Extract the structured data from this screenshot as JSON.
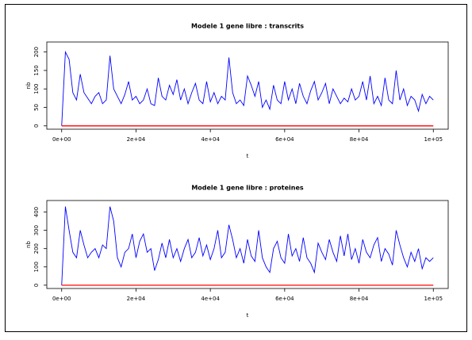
{
  "chart_data": [
    {
      "type": "line",
      "title": "Modele 1 gene libre : transcrits",
      "x_label": "t",
      "y_label": "nb",
      "xlim": [
        -4000,
        104000
      ],
      "ylim": [
        -9,
        227
      ],
      "xticks": [
        {
          "value": 0,
          "label": "0e+00"
        },
        {
          "value": 20000,
          "label": "2e+04"
        },
        {
          "value": 40000,
          "label": "4e+04"
        },
        {
          "value": 60000,
          "label": "6e+04"
        },
        {
          "value": 80000,
          "label": "8e+04"
        },
        {
          "value": 100000,
          "label": "1e+05"
        }
      ],
      "yticks": [
        0,
        50,
        100,
        150,
        200
      ],
      "series": [
        {
          "color": "#0000ff",
          "x": [
            0,
            1000,
            2000,
            3000,
            4000,
            5000,
            6000,
            7000,
            8000,
            9000,
            10000,
            11000,
            12000,
            13000,
            14000,
            15000,
            16000,
            17000,
            18000,
            19000,
            20000,
            21000,
            22000,
            23000,
            24000,
            25000,
            26000,
            27000,
            28000,
            29000,
            30000,
            31000,
            32000,
            33000,
            34000,
            35000,
            36000,
            37000,
            38000,
            39000,
            40000,
            41000,
            42000,
            43000,
            44000,
            45000,
            46000,
            47000,
            48000,
            49000,
            50000,
            51000,
            52000,
            53000,
            54000,
            55000,
            56000,
            57000,
            58000,
            59000,
            60000,
            61000,
            62000,
            63000,
            64000,
            65000,
            66000,
            67000,
            68000,
            69000,
            70000,
            71000,
            72000,
            73000,
            74000,
            75000,
            76000,
            77000,
            78000,
            79000,
            80000,
            81000,
            82000,
            83000,
            84000,
            85000,
            86000,
            87000,
            88000,
            89000,
            90000,
            91000,
            92000,
            93000,
            94000,
            95000,
            96000,
            97000,
            98000,
            99000,
            100000
          ],
          "values": [
            0,
            200,
            180,
            90,
            70,
            140,
            90,
            75,
            60,
            80,
            90,
            60,
            70,
            190,
            100,
            80,
            60,
            85,
            120,
            70,
            80,
            60,
            70,
            100,
            60,
            55,
            130,
            80,
            70,
            110,
            85,
            125,
            70,
            100,
            60,
            90,
            115,
            70,
            60,
            120,
            65,
            90,
            60,
            80,
            70,
            185,
            90,
            60,
            70,
            55,
            135,
            110,
            80,
            120,
            50,
            70,
            45,
            110,
            70,
            60,
            120,
            70,
            100,
            60,
            115,
            80,
            60,
            95,
            120,
            70,
            90,
            115,
            60,
            100,
            80,
            60,
            75,
            65,
            100,
            70,
            80,
            120,
            70,
            135,
            60,
            80,
            55,
            130,
            70,
            60,
            150,
            70,
            100,
            55,
            80,
            70,
            40,
            85,
            60,
            80,
            70
          ]
        },
        {
          "color": "#ff0000",
          "x": [
            0,
            100000
          ],
          "values": [
            0,
            0
          ]
        }
      ]
    },
    {
      "type": "line",
      "title": "Modele 1 gene libre : proteines",
      "x_label": "t",
      "y_label": "nb",
      "xlim": [
        -4000,
        104000
      ],
      "ylim": [
        -18,
        463
      ],
      "xticks": [
        {
          "value": 0,
          "label": "0e+00"
        },
        {
          "value": 20000,
          "label": "2e+04"
        },
        {
          "value": 40000,
          "label": "4e+04"
        },
        {
          "value": 60000,
          "label": "6e+04"
        },
        {
          "value": 80000,
          "label": "8e+04"
        },
        {
          "value": 100000,
          "label": "1e+05"
        }
      ],
      "yticks": [
        0,
        100,
        200,
        300,
        400
      ],
      "series": [
        {
          "color": "#0000ff",
          "x": [
            0,
            1000,
            2000,
            3000,
            4000,
            5000,
            6000,
            7000,
            8000,
            9000,
            10000,
            11000,
            12000,
            13000,
            14000,
            15000,
            16000,
            17000,
            18000,
            19000,
            20000,
            21000,
            22000,
            23000,
            24000,
            25000,
            26000,
            27000,
            28000,
            29000,
            30000,
            31000,
            32000,
            33000,
            34000,
            35000,
            36000,
            37000,
            38000,
            39000,
            40000,
            41000,
            42000,
            43000,
            44000,
            45000,
            46000,
            47000,
            48000,
            49000,
            50000,
            51000,
            52000,
            53000,
            54000,
            55000,
            56000,
            57000,
            58000,
            59000,
            60000,
            61000,
            62000,
            63000,
            64000,
            65000,
            66000,
            67000,
            68000,
            69000,
            70000,
            71000,
            72000,
            73000,
            74000,
            75000,
            76000,
            77000,
            78000,
            79000,
            80000,
            81000,
            82000,
            83000,
            84000,
            85000,
            86000,
            87000,
            88000,
            89000,
            90000,
            91000,
            92000,
            93000,
            94000,
            95000,
            96000,
            97000,
            98000,
            99000,
            100000
          ],
          "values": [
            0,
            430,
            300,
            180,
            150,
            300,
            220,
            150,
            180,
            200,
            150,
            220,
            200,
            430,
            350,
            150,
            100,
            180,
            200,
            280,
            150,
            240,
            280,
            180,
            200,
            80,
            140,
            230,
            150,
            250,
            150,
            200,
            130,
            200,
            250,
            150,
            180,
            260,
            160,
            220,
            140,
            200,
            300,
            150,
            180,
            330,
            250,
            150,
            200,
            120,
            250,
            160,
            130,
            300,
            150,
            100,
            70,
            200,
            240,
            150,
            120,
            280,
            160,
            200,
            130,
            260,
            150,
            120,
            70,
            230,
            180,
            140,
            250,
            180,
            130,
            270,
            160,
            280,
            140,
            200,
            120,
            250,
            180,
            150,
            220,
            260,
            130,
            200,
            170,
            110,
            300,
            220,
            150,
            100,
            180,
            130,
            200,
            90,
            150,
            130,
            150
          ]
        },
        {
          "color": "#ff0000",
          "x": [
            0,
            100000
          ],
          "values": [
            0,
            0
          ]
        }
      ]
    }
  ]
}
